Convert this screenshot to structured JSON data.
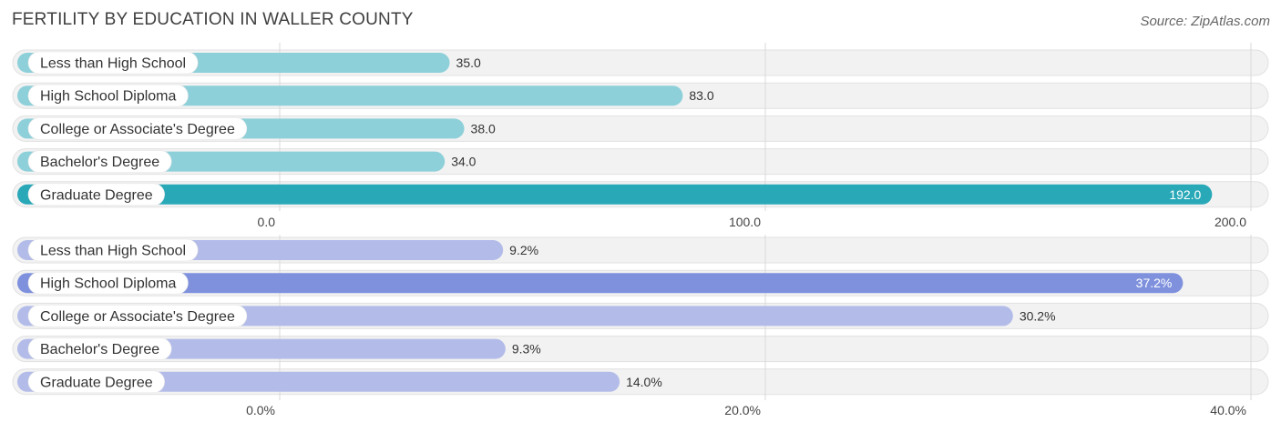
{
  "title": "FERTILITY BY EDUCATION IN WALLER COUNTY",
  "source": "Source: ZipAtlas.com",
  "chart_data": [
    {
      "type": "bar",
      "orientation": "horizontal",
      "categories": [
        "Less than High School",
        "High School Diploma",
        "College or Associate's Degree",
        "Bachelor's Degree",
        "Graduate Degree"
      ],
      "values": [
        35.0,
        83.0,
        38.0,
        34.0,
        192.0
      ],
      "value_labels": [
        "35.0",
        "83.0",
        "38.0",
        "34.0",
        "192.0"
      ],
      "xlim": [
        0,
        200
      ],
      "ticks": [
        0,
        100,
        200
      ],
      "tick_labels": [
        "0.0",
        "100.0",
        "200.0"
      ],
      "colors": {
        "light": "#8dd0d9",
        "highlight": "#29a8b8"
      },
      "highlight_index": 4,
      "grid": true
    },
    {
      "type": "bar",
      "orientation": "horizontal",
      "categories": [
        "Less than High School",
        "High School Diploma",
        "College or Associate's Degree",
        "Bachelor's Degree",
        "Graduate Degree"
      ],
      "values": [
        9.2,
        37.2,
        30.2,
        9.3,
        14.0
      ],
      "value_labels": [
        "9.2%",
        "37.2%",
        "30.2%",
        "9.3%",
        "14.0%"
      ],
      "xlim": [
        0,
        40
      ],
      "ticks": [
        0,
        20,
        40
      ],
      "tick_labels": [
        "0.0%",
        "20.0%",
        "40.0%"
      ],
      "colors": {
        "light": "#b3bce9",
        "highlight": "#7f91dd"
      },
      "highlight_index": 1,
      "grid": true
    }
  ]
}
